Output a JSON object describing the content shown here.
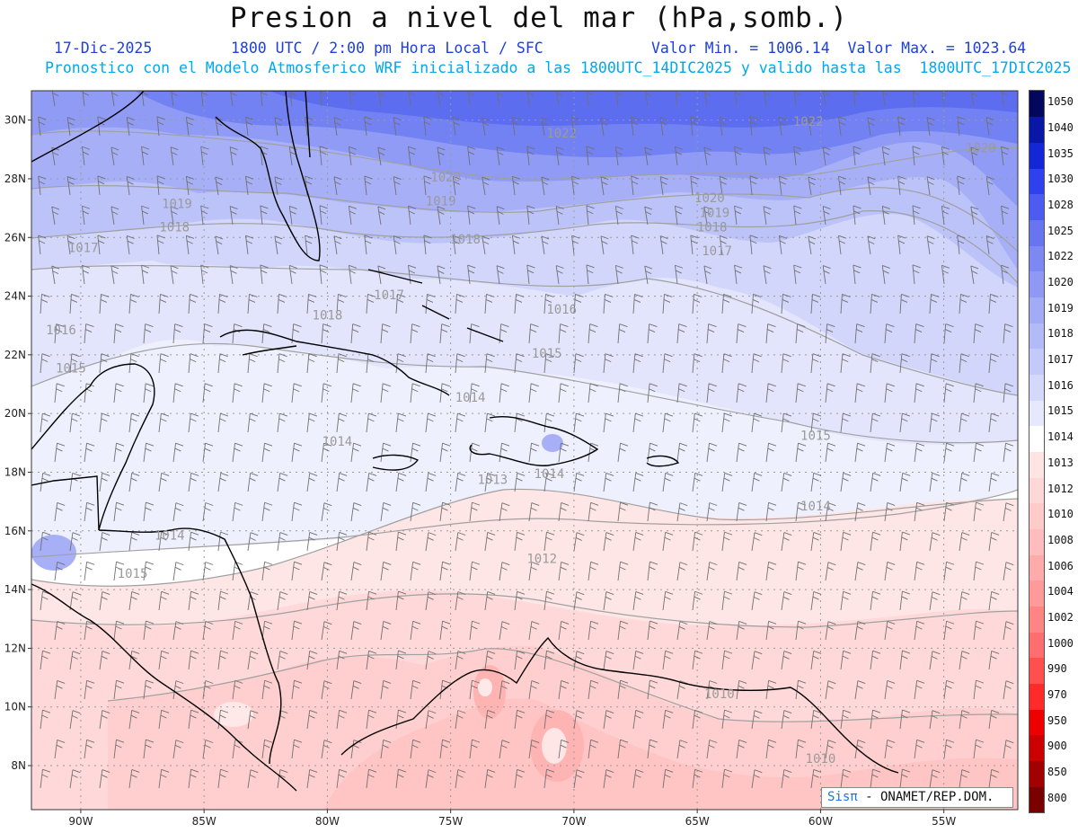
{
  "title": "Presion a nivel del mar (hPa,somb.)",
  "date": "17-Dic-2025",
  "time": "1800 UTC / 2:00 pm Hora Local / SFC",
  "minmax": "Valor Min. = 1006.14  Valor Max. = 1023.64",
  "description": "Pronostico con el Modelo Atmosferico WRF inicializado a las 1800UTC_14DIC2025 y valido hasta las  1800UTC_17DIC2025",
  "credit": {
    "brand": "Sisπ",
    "org": " - ONAMET/REP.DOM."
  },
  "map": {
    "lon_range": [
      -92,
      -52
    ],
    "lat_range": [
      6.5,
      31
    ],
    "lon_ticks": [
      {
        "lon": -90,
        "label": "90W"
      },
      {
        "lon": -85,
        "label": "85W"
      },
      {
        "lon": -80,
        "label": "80W"
      },
      {
        "lon": -75,
        "label": "75W"
      },
      {
        "lon": -70,
        "label": "70W"
      },
      {
        "lon": -65,
        "label": "65W"
      },
      {
        "lon": -60,
        "label": "60W"
      },
      {
        "lon": -55,
        "label": "55W"
      }
    ],
    "lat_ticks": [
      {
        "lat": 30,
        "label": "30N"
      },
      {
        "lat": 28,
        "label": "28N"
      },
      {
        "lat": 26,
        "label": "26N"
      },
      {
        "lat": 24,
        "label": "24N"
      },
      {
        "lat": 22,
        "label": "22N"
      },
      {
        "lat": 20,
        "label": "20N"
      },
      {
        "lat": 18,
        "label": "18N"
      },
      {
        "lat": 16,
        "label": "16N"
      },
      {
        "lat": 14,
        "label": "14N"
      },
      {
        "lat": 12,
        "label": "12N"
      },
      {
        "lat": 10,
        "label": "10N"
      },
      {
        "lat": 8,
        "label": "8N"
      }
    ],
    "contour_labels": [
      {
        "lon": -70.5,
        "lat": 29.4,
        "text": "1022"
      },
      {
        "lon": -60.5,
        "lat": 29.8,
        "text": "1022"
      },
      {
        "lon": -53.5,
        "lat": 28.9,
        "text": "1020"
      },
      {
        "lon": -75.2,
        "lat": 27.9,
        "text": "1020"
      },
      {
        "lon": -75.4,
        "lat": 27.1,
        "text": "1019"
      },
      {
        "lon": -64.5,
        "lat": 27.2,
        "text": "1020"
      },
      {
        "lon": -64.3,
        "lat": 26.7,
        "text": "1019"
      },
      {
        "lon": -64.4,
        "lat": 26.2,
        "text": "1018"
      },
      {
        "lon": -64.2,
        "lat": 25.4,
        "text": "1017"
      },
      {
        "lon": -86.1,
        "lat": 27.0,
        "text": "1019"
      },
      {
        "lon": -86.2,
        "lat": 26.2,
        "text": "1018"
      },
      {
        "lon": -89.9,
        "lat": 25.5,
        "text": "1017"
      },
      {
        "lon": -74.4,
        "lat": 25.8,
        "text": "1018"
      },
      {
        "lon": -77.5,
        "lat": 23.9,
        "text": "1017"
      },
      {
        "lon": -80.0,
        "lat": 23.2,
        "text": "1018"
      },
      {
        "lon": -70.5,
        "lat": 23.4,
        "text": "1016"
      },
      {
        "lon": -90.8,
        "lat": 22.7,
        "text": "1016"
      },
      {
        "lon": -90.4,
        "lat": 21.4,
        "text": "1015"
      },
      {
        "lon": -71.1,
        "lat": 21.9,
        "text": "1015"
      },
      {
        "lon": -74.2,
        "lat": 20.4,
        "text": "1014"
      },
      {
        "lon": -60.2,
        "lat": 19.1,
        "text": "1015"
      },
      {
        "lon": -79.6,
        "lat": 18.9,
        "text": "1014"
      },
      {
        "lon": -73.3,
        "lat": 17.6,
        "text": "1013"
      },
      {
        "lon": -71.0,
        "lat": 17.8,
        "text": "1014"
      },
      {
        "lon": -60.2,
        "lat": 16.7,
        "text": "1014"
      },
      {
        "lon": -86.4,
        "lat": 15.7,
        "text": "1014"
      },
      {
        "lon": -87.9,
        "lat": 14.4,
        "text": "1015"
      },
      {
        "lon": -71.3,
        "lat": 14.9,
        "text": "1012"
      },
      {
        "lon": -64.1,
        "lat": 10.3,
        "text": "1010"
      },
      {
        "lon": -60.0,
        "lat": 8.1,
        "text": "1010"
      }
    ]
  },
  "colorbar": {
    "levels": [
      "800",
      "850",
      "900",
      "950",
      "970",
      "990",
      "1000",
      "1002",
      "1004",
      "1006",
      "1008",
      "1010",
      "1012",
      "1013",
      "1014",
      "1015",
      "1016",
      "1017",
      "1018",
      "1019",
      "1020",
      "1022",
      "1025",
      "1028",
      "1030",
      "1035",
      "1040",
      "1050"
    ],
    "colors": [
      "#7a0000",
      "#a00000",
      "#cc0000",
      "#ee0000",
      "#ff2a2a",
      "#ff4f4f",
      "#ff6e6e",
      "#ff8585",
      "#ff9a9a",
      "#ffabab",
      "#ffbcbc",
      "#ffcaca",
      "#ffd7d7",
      "#ffe4e4",
      "#ffffff",
      "#e6e8fc",
      "#d4d8fa",
      "#c3c9f9",
      "#b3baf8",
      "#a2abf6",
      "#8f99f4",
      "#7d88f3",
      "#6875f1",
      "#4c5bf0",
      "#2f41ef",
      "#1427d6",
      "#0a17a6",
      "#03085c"
    ]
  }
}
